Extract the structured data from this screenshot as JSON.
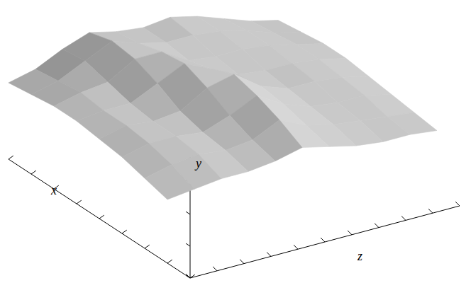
{
  "chart_data": {
    "type": "surface",
    "x_label": "x",
    "y_label": "y",
    "z_label": "z",
    "tick_labels": false,
    "color": "#d8d8d8",
    "xlim": [
      0,
      8
    ],
    "ylim": [
      0,
      4
    ],
    "zlim": [
      0,
      10
    ],
    "xticks": [
      0,
      1,
      2,
      3,
      4,
      5,
      6,
      7,
      8
    ],
    "yticks": [
      0,
      1,
      2,
      3,
      4
    ],
    "zticks": [
      0,
      1,
      2,
      3,
      4,
      5,
      6,
      7,
      8,
      9,
      10
    ],
    "x": [
      1,
      2,
      3,
      4,
      5,
      6,
      7,
      8
    ],
    "z": [
      0,
      1,
      2,
      3,
      4,
      5,
      6,
      7,
      8,
      9,
      10
    ],
    "values": [
      [
        2.0,
        2.1,
        2.2,
        2.2,
        2.3,
        2.5,
        2.3,
        2.1,
        2.0,
        2.0,
        1.9
      ],
      [
        2.2,
        2.4,
        2.5,
        2.4,
        2.5,
        2.9,
        2.5,
        2.3,
        2.2,
        2.1,
        2.0
      ],
      [
        2.4,
        2.6,
        2.6,
        2.5,
        2.8,
        3.2,
        2.7,
        2.4,
        2.3,
        2.3,
        2.1
      ],
      [
        2.5,
        2.7,
        2.6,
        2.7,
        3.2,
        3.4,
        2.8,
        2.5,
        2.5,
        2.4,
        2.2
      ],
      [
        2.6,
        2.7,
        2.7,
        3.1,
        3.5,
        3.1,
        2.7,
        2.6,
        2.6,
        2.5,
        2.3
      ],
      [
        2.6,
        2.8,
        2.9,
        3.4,
        3.4,
        2.9,
        2.8,
        2.8,
        2.7,
        2.5,
        2.3
      ],
      [
        2.5,
        2.7,
        3.1,
        3.5,
        3.2,
        3.0,
        3.0,
        2.9,
        2.7,
        2.4,
        2.2
      ],
      [
        2.4,
        2.6,
        3.0,
        3.3,
        3.1,
        3.0,
        3.1,
        2.9,
        2.6,
        2.3,
        2.1
      ]
    ]
  }
}
